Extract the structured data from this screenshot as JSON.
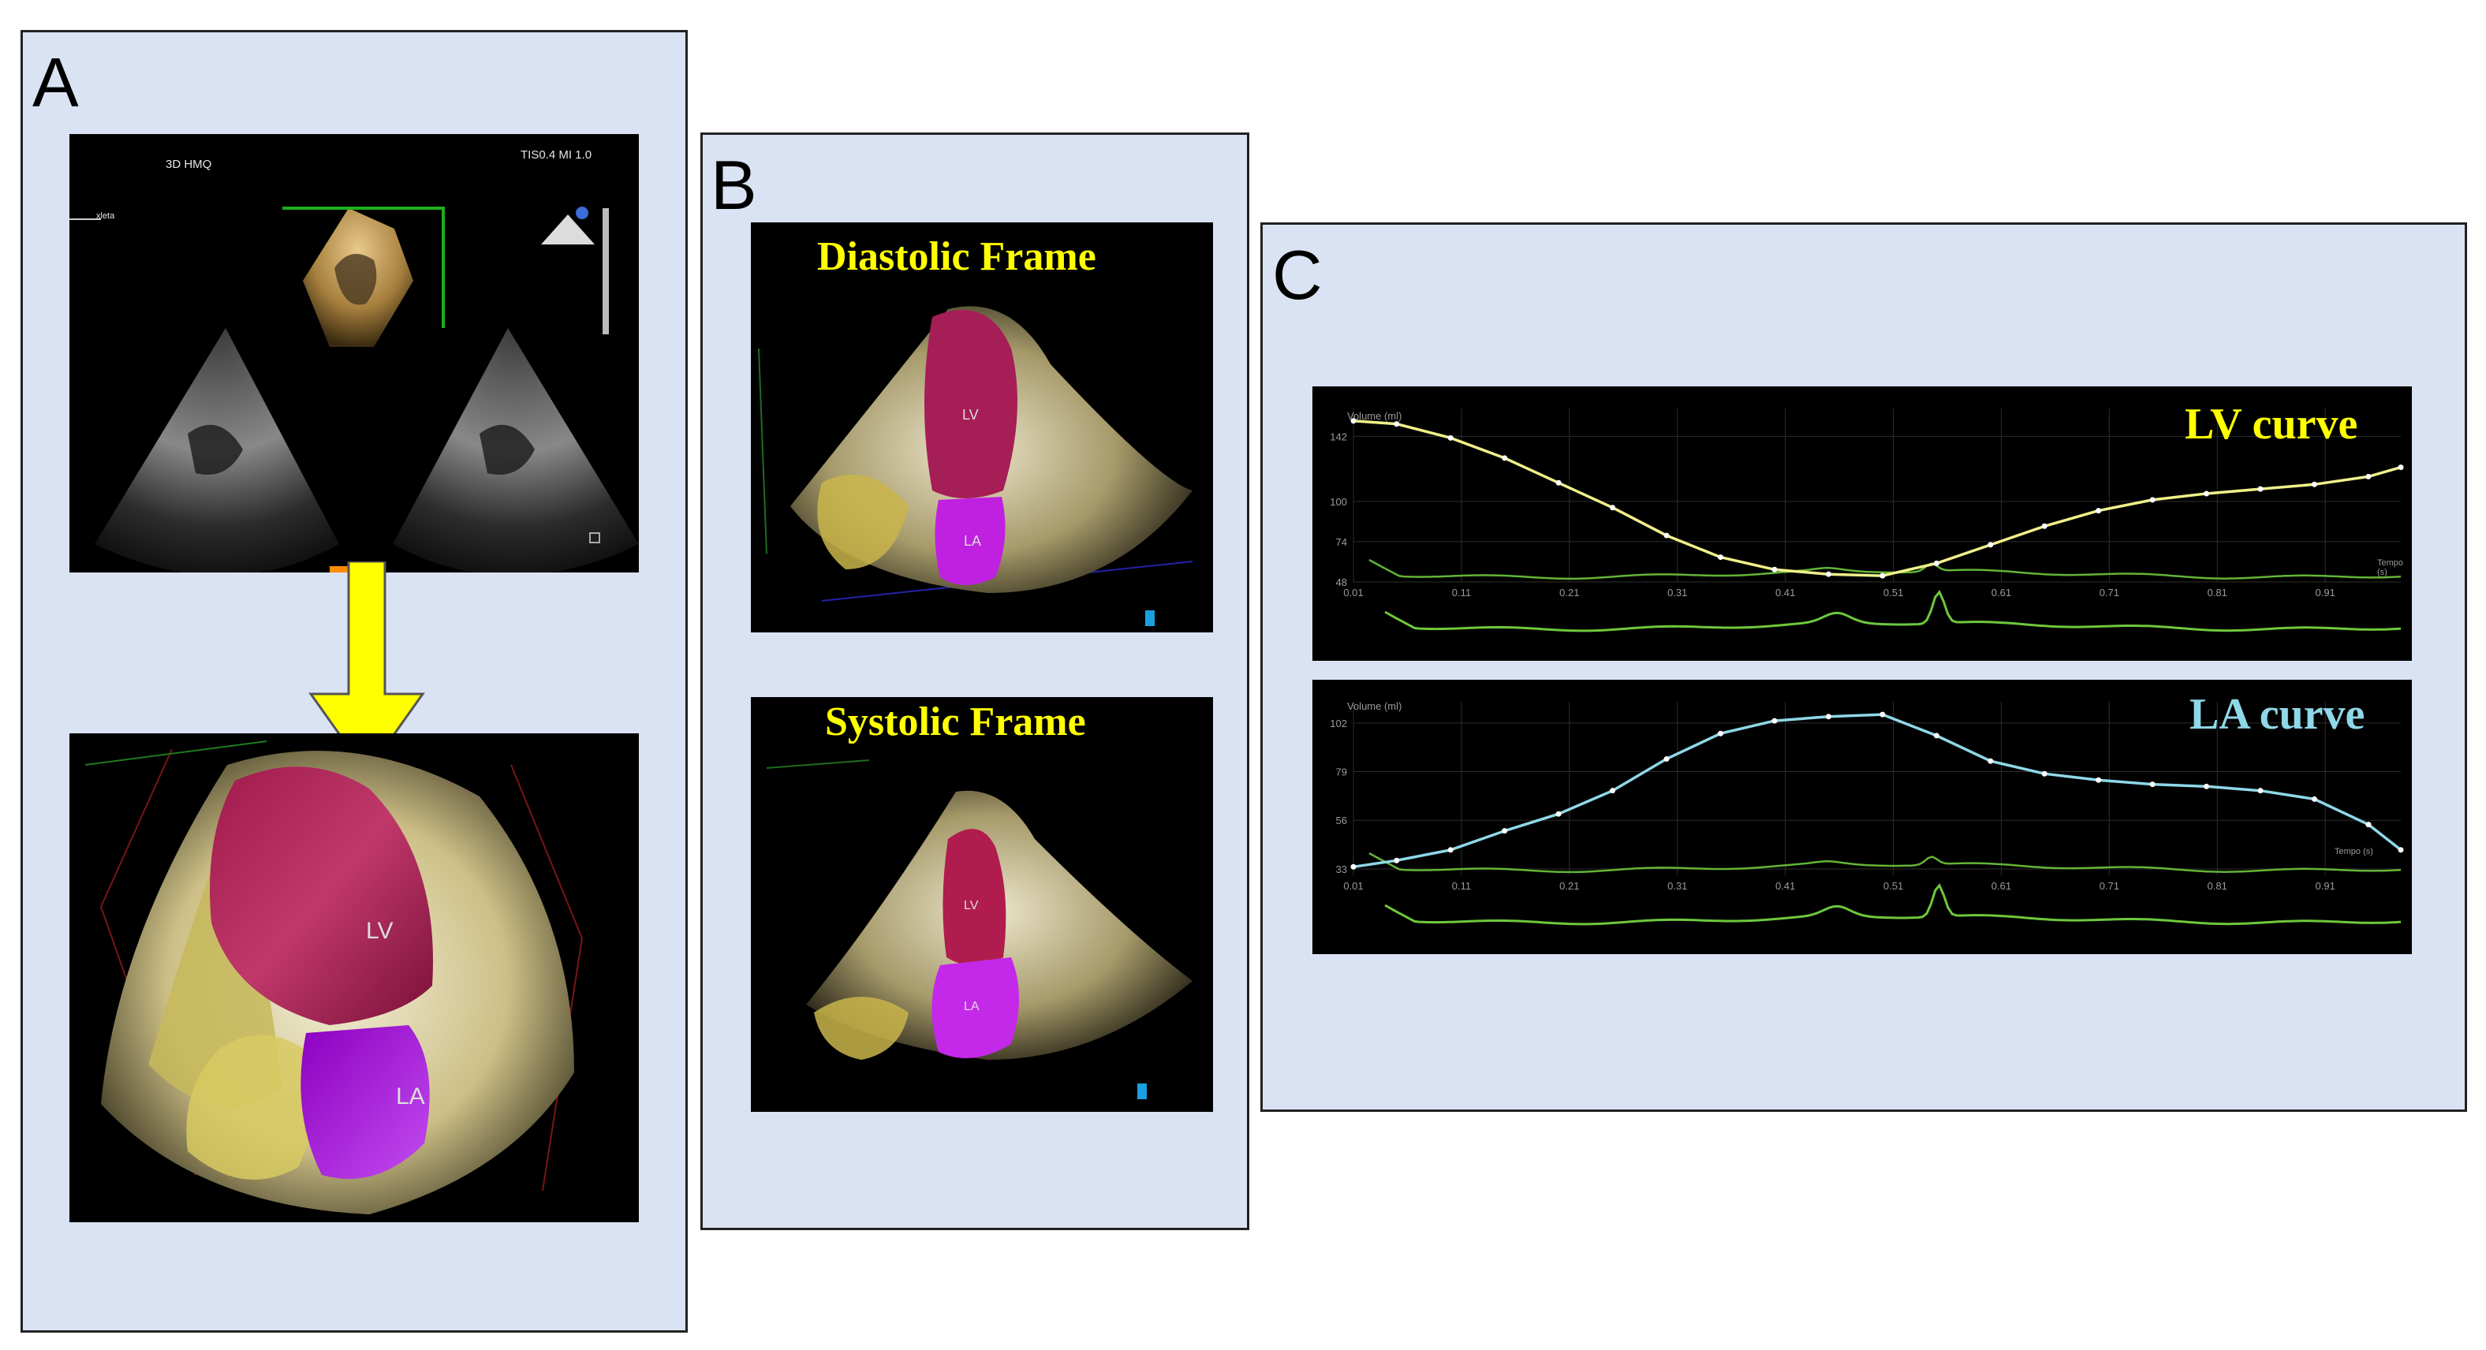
{
  "panels": {
    "a": {
      "letter": "A",
      "echo_header_left": "3D HMQ",
      "echo_header_right": "TIS0.4  MI 1.0",
      "echo_side_label": "xleta",
      "model_labels": {
        "lv": "LV",
        "la": "LA"
      }
    },
    "b": {
      "letter": "B",
      "diastolic_title": "Diastolic Frame",
      "systolic_title": "Systolic Frame",
      "diastolic_labels": {
        "lv": "LV",
        "la": "LA"
      },
      "systolic_labels": {
        "lv": "LV",
        "la": "LA"
      }
    },
    "c": {
      "letter": "C"
    }
  },
  "colors": {
    "panel_bg": "#dae3f3",
    "arrow": "#ffff00",
    "lv_chamber": "#b0245a",
    "la_chamber": "#b400e6",
    "lv_curve": "#f0f08a",
    "la_curve": "#8fd8e8",
    "ecg": "#6ec83c",
    "diastolic_title": "#ffff00",
    "lv_curve_title": "#ffff00",
    "la_curve_title": "#8fd8e8"
  },
  "chart_data": [
    {
      "type": "line",
      "title": "LV curve",
      "ylabel": "Volume (ml)",
      "xlabel": "Tempo (s)",
      "x_ticks": [
        "0.01",
        "0.11",
        "0.21",
        "0.31",
        "0.41",
        "0.51",
        "0.61",
        "0.71",
        "0.81",
        "0.91"
      ],
      "y_ticks": [
        "142",
        "100",
        "74",
        "48"
      ],
      "xlim": [
        0.01,
        0.98
      ],
      "ylim": [
        48,
        160
      ],
      "grid": true,
      "series": [
        {
          "x": [
            0.01,
            0.05,
            0.1,
            0.15,
            0.2,
            0.25,
            0.3,
            0.35,
            0.4,
            0.45,
            0.5,
            0.55,
            0.6,
            0.65,
            0.7,
            0.75,
            0.8,
            0.85,
            0.9,
            0.95,
            0.98
          ],
          "y": [
            152,
            150,
            141,
            128,
            112,
            96,
            78,
            64,
            56,
            53,
            52,
            60,
            72,
            84,
            94,
            101,
            105,
            108,
            111,
            116,
            122
          ]
        }
      ]
    },
    {
      "type": "line",
      "title": "LA curve",
      "ylabel": "Volume (ml)",
      "xlabel": "Tempo (s)",
      "x_ticks": [
        "0.01",
        "0.11",
        "0.21",
        "0.31",
        "0.41",
        "0.51",
        "0.61",
        "0.71",
        "0.81",
        "0.91"
      ],
      "y_ticks": [
        "102",
        "79",
        "56",
        "33"
      ],
      "xlim": [
        0.01,
        0.98
      ],
      "ylim": [
        30,
        112
      ],
      "grid": true,
      "series": [
        {
          "x": [
            0.01,
            0.05,
            0.1,
            0.15,
            0.2,
            0.25,
            0.3,
            0.35,
            0.4,
            0.45,
            0.5,
            0.55,
            0.6,
            0.65,
            0.7,
            0.75,
            0.8,
            0.85,
            0.9,
            0.95,
            0.98
          ],
          "y": [
            34,
            37,
            42,
            51,
            59,
            70,
            85,
            97,
            103,
            105,
            106,
            96,
            84,
            78,
            75,
            73,
            72,
            70,
            66,
            54,
            42
          ]
        }
      ]
    }
  ]
}
